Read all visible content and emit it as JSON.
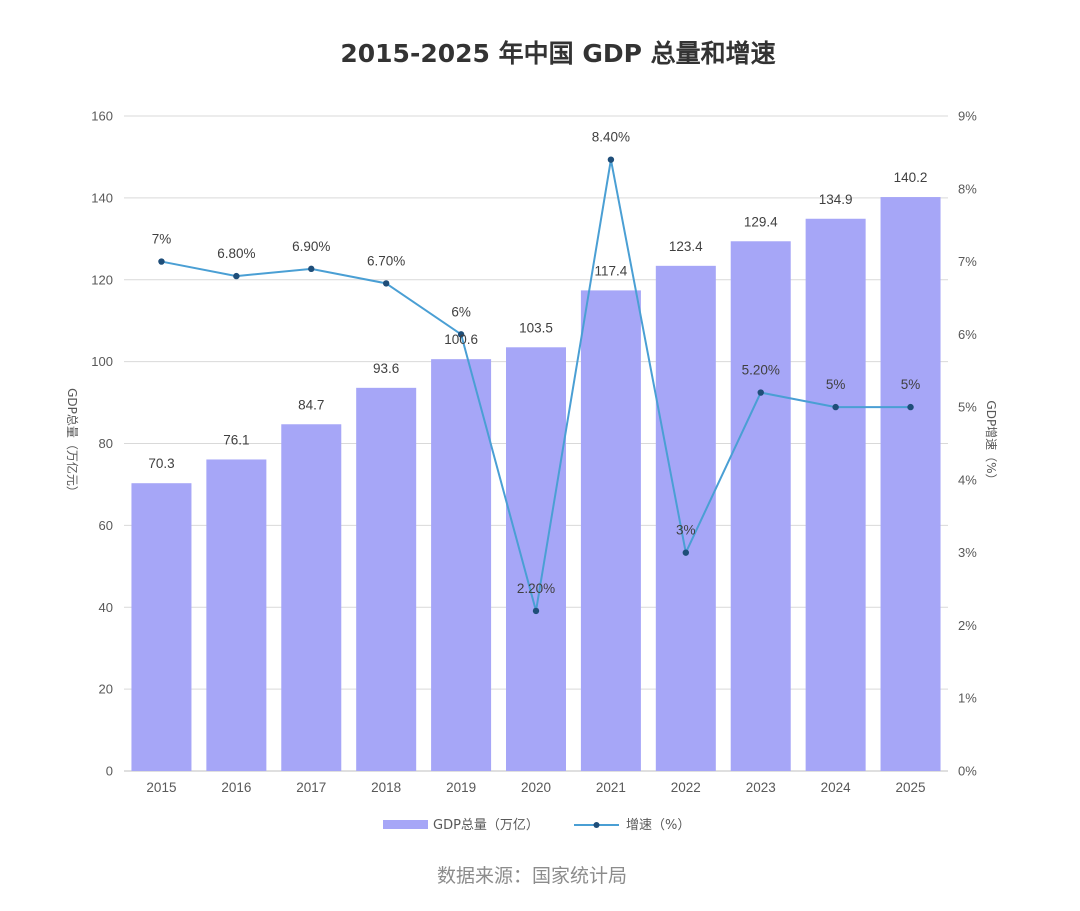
{
  "chart_data": {
    "type": "bar",
    "title": "2015-2025 年中国 GDP 总量和增速",
    "categories": [
      "2015",
      "2016",
      "2017",
      "2018",
      "2019",
      "2020",
      "2021",
      "2022",
      "2023",
      "2024",
      "2025"
    ],
    "series": [
      {
        "name": "GDP总量（万亿）",
        "type": "bar",
        "axis": "left",
        "values": [
          70.3,
          76.1,
          84.7,
          93.6,
          100.6,
          103.5,
          117.4,
          123.4,
          129.4,
          134.9,
          140.2
        ],
        "labels": [
          "70.3",
          "76.1",
          "84.7",
          "93.6",
          "100.6",
          "103.5",
          "117.4",
          "123.4",
          "129.4",
          "134.9",
          "140.2"
        ],
        "color": "#a6a6f7"
      },
      {
        "name": "增速（%）",
        "type": "line",
        "axis": "right",
        "values": [
          7,
          6.8,
          6.9,
          6.7,
          6,
          2.2,
          8.4,
          3,
          5.2,
          5,
          5
        ],
        "labels": [
          "7%",
          "6.80%",
          "6.90%",
          "6.70%",
          "6%",
          "2.20%",
          "8.40%",
          "3%",
          "5.20%",
          "5%",
          "5%"
        ],
        "color": "#4a9fd4",
        "marker_color": "#1f4e79"
      }
    ],
    "y_left": {
      "label": "GDP总量（万亿元）",
      "ylim": [
        0,
        160
      ],
      "ticks": [
        "0",
        "20",
        "40",
        "60",
        "80",
        "100",
        "120",
        "140",
        "160"
      ]
    },
    "y_right": {
      "label": "GDP增速（%）",
      "ylim": [
        0,
        9
      ],
      "ticks": [
        "0%",
        "1%",
        "2%",
        "3%",
        "4%",
        "5%",
        "6%",
        "7%",
        "8%",
        "9%"
      ]
    },
    "grid": true,
    "legend": "bottom",
    "legend_items": [
      "GDP总量（万亿）",
      "增速（%）"
    ],
    "source": "数据来源：国家统计局"
  }
}
